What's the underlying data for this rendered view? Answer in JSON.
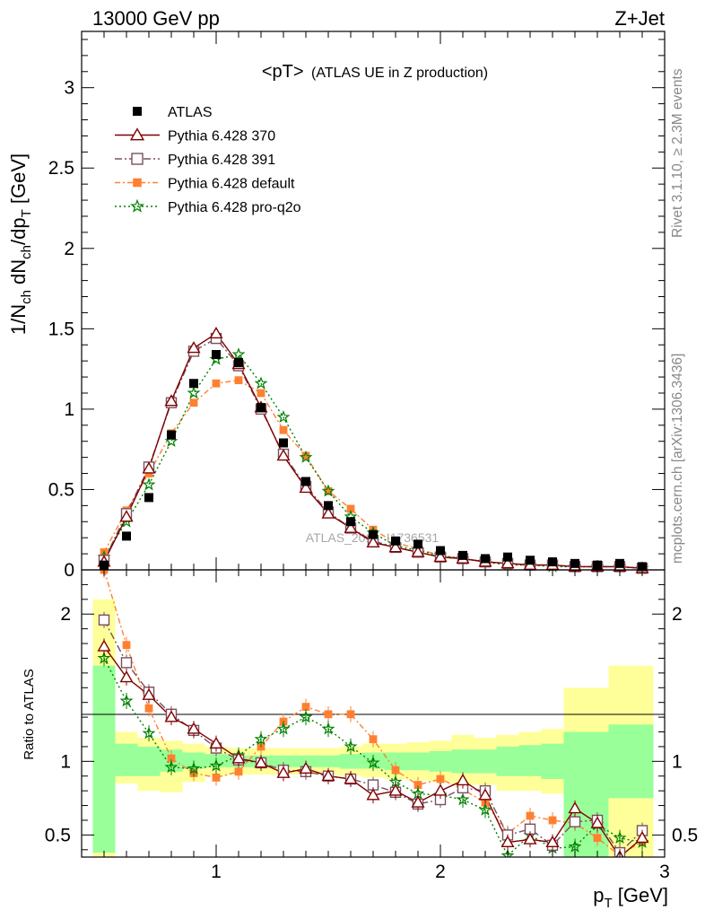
{
  "header": {
    "left": "13000 GeV pp",
    "right": "Z+Jet"
  },
  "plot_title": {
    "main": "<pT>",
    "sub": "(ATLAS UE in Z production)"
  },
  "side_labels": {
    "rivet": "Rivet 3.1.10, ≥ 2.3M events",
    "mcplots": "mcplots.cern.ch [arXiv:1306.3436]"
  },
  "watermark": "ATLAS_2019_I1736531",
  "colors": {
    "ATLAS": "#000000",
    "p370": "#800000",
    "p391": "#7a5060",
    "pdefault": "#ff8030",
    "pq2o": "#008000",
    "band_inner": "#99ff99",
    "band_outer": "#ffff99"
  },
  "chart_data": [
    {
      "type": "scatter",
      "ylabel": "1/N_ch dN_ch/dp_T [GeV]",
      "xlim": [
        0.4,
        3.0
      ],
      "ylim": [
        0,
        3.35
      ],
      "x_ticks": [
        1,
        2,
        3
      ],
      "y_ticks": [
        0,
        0.5,
        1,
        1.5,
        2,
        2.5,
        3
      ],
      "y_tick_labels": [
        "0",
        "0.5",
        "1",
        "1.5",
        "2",
        "2.5",
        "3"
      ],
      "legend_placement": "upper-left",
      "x": [
        0.5,
        0.6,
        0.7,
        0.8,
        0.9,
        1.0,
        1.1,
        1.2,
        1.3,
        1.4,
        1.5,
        1.6,
        1.7,
        1.8,
        1.9,
        2.0,
        2.1,
        2.2,
        2.3,
        2.4,
        2.5,
        2.6,
        2.7,
        2.8,
        2.9
      ],
      "series": [
        {
          "key": "ATLAS",
          "name": "ATLAS",
          "marker": "square",
          "values": [
            0.03,
            0.21,
            0.45,
            0.84,
            1.16,
            1.34,
            1.29,
            1.01,
            0.79,
            0.55,
            0.4,
            0.3,
            0.22,
            0.18,
            0.16,
            0.12,
            0.09,
            0.07,
            0.08,
            0.06,
            0.05,
            0.04,
            0.03,
            0.04,
            0.02
          ]
        },
        {
          "key": "p370",
          "name": "Pythia 6.428 370",
          "marker": "triangle",
          "dash": "",
          "values": [
            0.05,
            0.33,
            0.63,
            1.05,
            1.38,
            1.47,
            1.28,
            1.01,
            0.71,
            0.51,
            0.35,
            0.26,
            0.17,
            0.14,
            0.11,
            0.08,
            0.07,
            0.05,
            0.04,
            0.03,
            0.03,
            0.02,
            0.02,
            0.02,
            0.01
          ]
        },
        {
          "key": "p391",
          "name": "Pythia 6.428 391",
          "marker": "opensquare",
          "dash": "8 3 2 3",
          "values": [
            0.06,
            0.35,
            0.64,
            1.04,
            1.36,
            1.44,
            1.27,
            1.0,
            0.72,
            0.52,
            0.36,
            0.26,
            0.18,
            0.14,
            0.11,
            0.08,
            0.07,
            0.05,
            0.04,
            0.03,
            0.03,
            0.02,
            0.02,
            0.02,
            0.01
          ]
        },
        {
          "key": "pdefault",
          "name": "Pythia 6.428 default",
          "marker": "filledsquare",
          "dash": "6 3 2 3",
          "values": [
            0.11,
            0.37,
            0.6,
            0.85,
            1.04,
            1.16,
            1.18,
            1.1,
            0.87,
            0.71,
            0.49,
            0.38,
            0.25,
            0.17,
            0.13,
            0.09,
            0.07,
            0.05,
            0.04,
            0.03,
            0.03,
            0.02,
            0.02,
            0.02,
            0.01
          ]
        },
        {
          "key": "pq2o",
          "name": "Pythia 6.428 pro-q2o",
          "marker": "star",
          "dash": "2 3",
          "values": [
            0.08,
            0.3,
            0.53,
            0.8,
            1.1,
            1.31,
            1.34,
            1.16,
            0.95,
            0.7,
            0.49,
            0.33,
            0.23,
            0.15,
            0.12,
            0.09,
            0.07,
            0.05,
            0.03,
            0.03,
            0.02,
            0.02,
            0.02,
            0.02,
            0.01
          ]
        }
      ]
    },
    {
      "type": "line",
      "xlabel": "p_T [GeV]",
      "ylabel": "Ratio to ATLAS",
      "xlim": [
        0.4,
        3.0
      ],
      "ylim": [
        0.35,
        2.3
      ],
      "x_ticks": [
        1,
        2,
        3
      ],
      "x_tick_labels": [
        "1",
        "2",
        "3"
      ],
      "y_ticks": [
        0.5,
        1,
        2
      ],
      "y_tick_labels": [
        "0.5",
        "1",
        "2"
      ],
      "bin_edges": [
        0.45,
        0.55,
        0.65,
        0.75,
        0.85,
        0.95,
        1.05,
        1.15,
        1.25,
        1.35,
        1.45,
        1.55,
        1.65,
        1.75,
        1.85,
        1.95,
        2.05,
        2.15,
        2.25,
        2.35,
        2.45,
        2.55,
        2.65,
        2.75,
        2.85,
        2.95
      ],
      "band_inner": [
        [
          0.38,
          1.65
        ],
        [
          0.9,
          1.12
        ],
        [
          0.9,
          1.1
        ],
        [
          0.93,
          1.08
        ],
        [
          0.95,
          1.06
        ],
        [
          0.96,
          1.05
        ],
        [
          0.96,
          1.04
        ],
        [
          0.96,
          1.04
        ],
        [
          0.96,
          1.04
        ],
        [
          0.96,
          1.04
        ],
        [
          0.96,
          1.04
        ],
        [
          0.95,
          1.05
        ],
        [
          0.95,
          1.06
        ],
        [
          0.94,
          1.06
        ],
        [
          0.94,
          1.06
        ],
        [
          0.93,
          1.07
        ],
        [
          0.92,
          1.08
        ],
        [
          0.92,
          1.08
        ],
        [
          0.9,
          1.1
        ],
        [
          0.9,
          1.11
        ],
        [
          0.88,
          1.12
        ],
        [
          0.35,
          1.2
        ],
        [
          0.35,
          1.2
        ],
        [
          0.75,
          1.25
        ],
        [
          0.75,
          1.25
        ]
      ],
      "band_outer": [
        [
          0.35,
          2.1
        ],
        [
          0.85,
          1.2
        ],
        [
          0.8,
          1.16
        ],
        [
          0.79,
          1.14
        ],
        [
          0.86,
          1.12
        ],
        [
          0.9,
          1.1
        ],
        [
          0.91,
          1.09
        ],
        [
          0.91,
          1.09
        ],
        [
          0.91,
          1.09
        ],
        [
          0.91,
          1.09
        ],
        [
          0.91,
          1.09
        ],
        [
          0.9,
          1.1
        ],
        [
          0.89,
          1.12
        ],
        [
          0.88,
          1.12
        ],
        [
          0.87,
          1.13
        ],
        [
          0.86,
          1.14
        ],
        [
          0.84,
          1.18
        ],
        [
          0.84,
          1.16
        ],
        [
          0.8,
          1.18
        ],
        [
          0.8,
          1.2
        ],
        [
          0.78,
          1.22
        ],
        [
          0.35,
          1.5
        ],
        [
          0.35,
          1.5
        ],
        [
          0.35,
          1.65
        ],
        [
          0.35,
          1.65
        ]
      ],
      "x": [
        0.5,
        0.6,
        0.7,
        0.8,
        0.9,
        1.0,
        1.1,
        1.2,
        1.3,
        1.4,
        1.5,
        1.6,
        1.7,
        1.8,
        1.9,
        2.0,
        2.1,
        2.2,
        2.3,
        2.4,
        2.5,
        2.6,
        2.7,
        2.8,
        2.9
      ],
      "series": [
        {
          "key": "p370",
          "name": "Pythia 6.428 370",
          "marker": "triangle",
          "dash": "",
          "values": [
            1.78,
            1.57,
            1.45,
            1.3,
            1.22,
            1.12,
            1.02,
            0.99,
            0.92,
            0.95,
            0.9,
            0.88,
            0.77,
            0.8,
            0.72,
            0.8,
            0.87,
            0.77,
            0.45,
            0.47,
            0.45,
            0.68,
            0.58,
            0.35,
            0.48
          ]
        },
        {
          "key": "p391",
          "name": "Pythia 6.428 391",
          "marker": "opensquare",
          "dash": "8 3 2 3",
          "values": [
            1.96,
            1.67,
            1.47,
            1.32,
            1.21,
            1.09,
            1.01,
            0.99,
            0.94,
            0.93,
            0.9,
            0.88,
            0.84,
            0.79,
            0.71,
            0.74,
            0.82,
            0.8,
            0.5,
            0.54,
            0.43,
            0.59,
            0.6,
            0.38,
            0.53
          ]
        },
        {
          "key": "pdefault",
          "name": "Pythia 6.428 default",
          "marker": "filledsquare",
          "dash": "6 3 2 3",
          "values": [
            2.3,
            1.79,
            1.36,
            1.02,
            0.92,
            0.89,
            0.93,
            1.1,
            1.27,
            1.37,
            1.32,
            1.32,
            1.15,
            0.94,
            0.84,
            0.88,
            0.81,
            0.72,
            0.51,
            0.63,
            0.6,
            0.58,
            0.48,
            0.36,
            0.46
          ]
        },
        {
          "key": "pq2o",
          "name": "Pythia 6.428 pro-q2o",
          "marker": "star",
          "dash": "2 3",
          "values": [
            1.7,
            1.41,
            1.19,
            0.96,
            0.95,
            0.97,
            1.04,
            1.15,
            1.22,
            1.3,
            1.22,
            1.1,
            0.99,
            0.86,
            0.78,
            0.77,
            0.74,
            0.67,
            0.36,
            0.5,
            0.41,
            0.42,
            0.57,
            0.48,
            0.45
          ]
        }
      ]
    }
  ]
}
